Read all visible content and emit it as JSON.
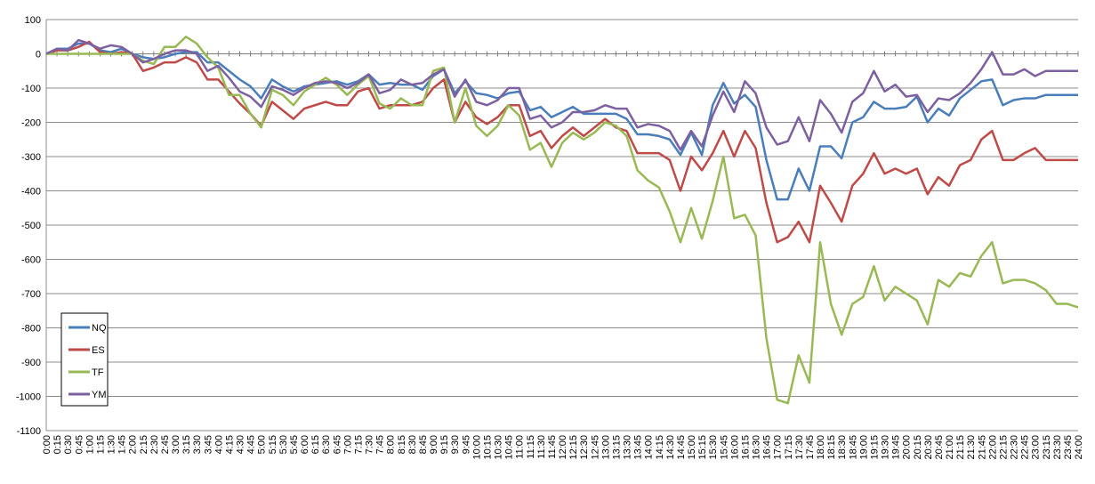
{
  "chart_data": {
    "type": "line",
    "title": "",
    "xlabel": "",
    "ylabel": "",
    "ylim": [
      -1100,
      100
    ],
    "yticks": [
      100,
      0,
      -100,
      -200,
      -300,
      -400,
      -500,
      -600,
      -700,
      -800,
      -900,
      -1000,
      -1100
    ],
    "grid": true,
    "legend_position": "bottom-left",
    "x": [
      "0:00",
      "0:15",
      "0:30",
      "0:45",
      "1:00",
      "1:15",
      "1:30",
      "1:45",
      "2:00",
      "2:15",
      "2:30",
      "2:45",
      "3:00",
      "3:15",
      "3:30",
      "3:45",
      "4:00",
      "4:15",
      "4:30",
      "4:45",
      "5:00",
      "5:15",
      "5:30",
      "5:45",
      "6:00",
      "6:15",
      "6:30",
      "6:45",
      "7:00",
      "7:15",
      "7:30",
      "7:45",
      "8:00",
      "8:15",
      "8:30",
      "8:45",
      "9:00",
      "9:15",
      "9:30",
      "9:45",
      "10:00",
      "10:15",
      "10:30",
      "10:45",
      "11:00",
      "11:15",
      "11:30",
      "11:45",
      "12:00",
      "12:15",
      "12:30",
      "12:45",
      "13:00",
      "13:15",
      "13:30",
      "13:45",
      "14:00",
      "14:15",
      "14:30",
      "14:45",
      "15:00",
      "15:15",
      "15:30",
      "15:45",
      "16:00",
      "16:15",
      "16:30",
      "16:45",
      "17:00",
      "17:15",
      "17:30",
      "17:45",
      "18:00",
      "18:15",
      "18:30",
      "18:45",
      "19:00",
      "19:15",
      "19:30",
      "19:45",
      "20:00",
      "20:15",
      "20:30",
      "20:45",
      "21:00",
      "21:15",
      "21:30",
      "21:45",
      "22:00",
      "22:15",
      "22:30",
      "22:45",
      "23:00",
      "23:15",
      "23:30",
      "23:45",
      "24:00"
    ],
    "series": [
      {
        "name": "NQ",
        "color": "#4a7ebb",
        "values": [
          0,
          15,
          15,
          30,
          30,
          10,
          5,
          15,
          0,
          -10,
          -15,
          -10,
          0,
          5,
          5,
          -25,
          -25,
          -50,
          -75,
          -95,
          -130,
          -75,
          -95,
          -110,
          -95,
          -90,
          -85,
          -80,
          -90,
          -80,
          -60,
          -90,
          -85,
          -90,
          -90,
          -105,
          -65,
          -45,
          -115,
          -80,
          -115,
          -120,
          -130,
          -115,
          -110,
          -165,
          -155,
          -185,
          -170,
          -155,
          -175,
          -175,
          -175,
          -175,
          -190,
          -235,
          -235,
          -240,
          -250,
          -295,
          -230,
          -295,
          -150,
          -85,
          -145,
          -120,
          -155,
          -310,
          -425,
          -425,
          -335,
          -400,
          -270,
          -270,
          -305,
          -200,
          -185,
          -140,
          -160,
          -160,
          -155,
          -125,
          -200,
          -160,
          -180,
          -130,
          -105,
          -80,
          -75,
          -150,
          -135,
          -130,
          -130,
          -120,
          -120,
          -120,
          -120
        ]
      },
      {
        "name": "ES",
        "color": "#be4b48",
        "values": [
          0,
          10,
          10,
          20,
          35,
          5,
          0,
          5,
          0,
          -50,
          -40,
          -25,
          -25,
          -10,
          -25,
          -75,
          -75,
          -110,
          -145,
          -175,
          -210,
          -140,
          -165,
          -190,
          -160,
          -150,
          -140,
          -150,
          -150,
          -110,
          -100,
          -160,
          -150,
          -150,
          -150,
          -140,
          -100,
          -75,
          -200,
          -140,
          -185,
          -205,
          -185,
          -150,
          -150,
          -240,
          -225,
          -275,
          -240,
          -215,
          -240,
          -215,
          -190,
          -215,
          -225,
          -290,
          -290,
          -290,
          -310,
          -400,
          -300,
          -340,
          -290,
          -225,
          -300,
          -225,
          -275,
          -435,
          -550,
          -535,
          -490,
          -550,
          -385,
          -435,
          -490,
          -385,
          -350,
          -290,
          -350,
          -335,
          -350,
          -335,
          -410,
          -360,
          -385,
          -325,
          -310,
          -250,
          -225,
          -310,
          -310,
          -290,
          -275,
          -310,
          -310,
          -310,
          -310
        ]
      },
      {
        "name": "TF",
        "color": "#98b954",
        "values": [
          0,
          0,
          0,
          0,
          0,
          0,
          0,
          0,
          0,
          -20,
          -30,
          20,
          20,
          50,
          30,
          -10,
          -40,
          -120,
          -120,
          -175,
          -215,
          -105,
          -120,
          -150,
          -110,
          -90,
          -70,
          -90,
          -120,
          -90,
          -65,
          -145,
          -160,
          -130,
          -150,
          -150,
          -50,
          -40,
          -200,
          -100,
          -210,
          -240,
          -210,
          -150,
          -180,
          -280,
          -260,
          -330,
          -260,
          -230,
          -250,
          -230,
          -200,
          -210,
          -240,
          -340,
          -370,
          -390,
          -460,
          -550,
          -450,
          -540,
          -430,
          -300,
          -480,
          -470,
          -530,
          -830,
          -1010,
          -1020,
          -880,
          -960,
          -550,
          -730,
          -820,
          -730,
          -710,
          -620,
          -720,
          -680,
          -700,
          -720,
          -790,
          -660,
          -680,
          -640,
          -650,
          -590,
          -550,
          -670,
          -660,
          -660,
          -670,
          -690,
          -730,
          -730,
          -740
        ]
      },
      {
        "name": "YM",
        "color": "#7d60a0",
        "values": [
          0,
          15,
          10,
          40,
          30,
          15,
          25,
          20,
          0,
          -25,
          -15,
          0,
          10,
          10,
          0,
          -50,
          -35,
          -70,
          -110,
          -125,
          -155,
          -95,
          -105,
          -120,
          -100,
          -85,
          -80,
          -85,
          -100,
          -85,
          -60,
          -115,
          -105,
          -75,
          -90,
          -85,
          -60,
          -45,
          -125,
          -75,
          -140,
          -150,
          -135,
          -100,
          -100,
          -190,
          -180,
          -215,
          -200,
          -170,
          -170,
          -165,
          -150,
          -160,
          -160,
          -215,
          -205,
          -210,
          -225,
          -280,
          -225,
          -270,
          -180,
          -110,
          -170,
          -80,
          -115,
          -215,
          -265,
          -255,
          -185,
          -255,
          -135,
          -175,
          -230,
          -140,
          -115,
          -50,
          -110,
          -90,
          -125,
          -120,
          -170,
          -130,
          -135,
          -115,
          -85,
          -45,
          5,
          -60,
          -60,
          -45,
          -65,
          -50,
          -50,
          -50,
          -50
        ]
      }
    ]
  }
}
